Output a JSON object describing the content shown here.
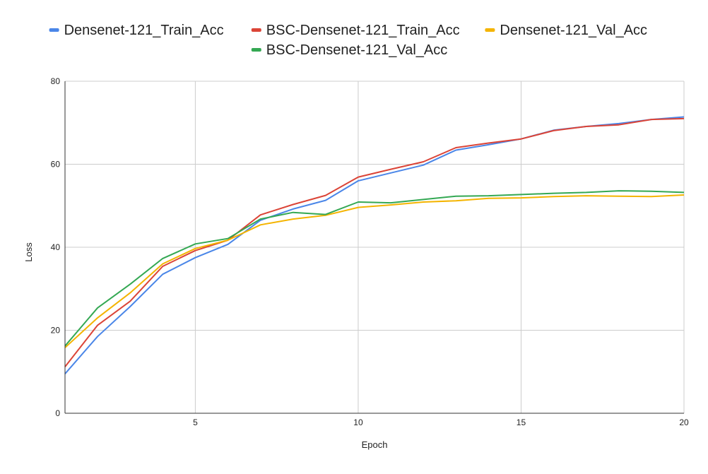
{
  "chart_data": {
    "type": "line",
    "title": "",
    "xlabel": "Epoch",
    "ylabel": "Loss",
    "xlim": [
      1,
      20
    ],
    "ylim": [
      0,
      80
    ],
    "x_ticks": [
      5,
      10,
      15,
      20
    ],
    "y_ticks": [
      0,
      20,
      40,
      60,
      80
    ],
    "grid": true,
    "legend_position": "top",
    "x": [
      1,
      2,
      3,
      4,
      5,
      6,
      7,
      8,
      9,
      10,
      11,
      12,
      13,
      14,
      15,
      16,
      17,
      18,
      19,
      20
    ],
    "series": [
      {
        "name": "Densenet-121_Train_Acc",
        "color": "#4a86e8",
        "values": [
          9.5,
          18.5,
          25.7,
          33.5,
          37.5,
          40.7,
          46.5,
          49.2,
          51.3,
          56.0,
          57.9,
          59.8,
          63.4,
          64.7,
          66.1,
          68.2,
          69.1,
          69.8,
          70.8,
          71.4
        ]
      },
      {
        "name": "BSC-Densenet-121_Train_Acc",
        "color": "#db4437",
        "values": [
          11.2,
          21.2,
          27.0,
          35.4,
          39.2,
          41.7,
          47.8,
          50.3,
          52.5,
          56.9,
          58.8,
          60.6,
          64.0,
          65.1,
          66.1,
          68.1,
          69.1,
          69.5,
          70.8,
          71.0
        ]
      },
      {
        "name": "Densenet-121_Val_Acc",
        "color": "#f4b400",
        "values": [
          15.8,
          23.0,
          29.0,
          36.0,
          39.7,
          41.7,
          45.4,
          46.8,
          47.7,
          49.6,
          50.2,
          50.9,
          51.2,
          51.8,
          51.9,
          52.2,
          52.4,
          52.3,
          52.2,
          52.6
        ]
      },
      {
        "name": "BSC-Densenet-121_Val_Acc",
        "color": "#34a853",
        "values": [
          16.2,
          25.4,
          31.1,
          37.3,
          40.8,
          42.1,
          46.8,
          48.4,
          47.9,
          50.9,
          50.7,
          51.5,
          52.3,
          52.4,
          52.7,
          53.0,
          53.2,
          53.6,
          53.5,
          53.2
        ]
      }
    ]
  },
  "colors": {
    "grid": "#cccccc",
    "axis": "#333333",
    "text": "#222222",
    "background": "#ffffff"
  }
}
